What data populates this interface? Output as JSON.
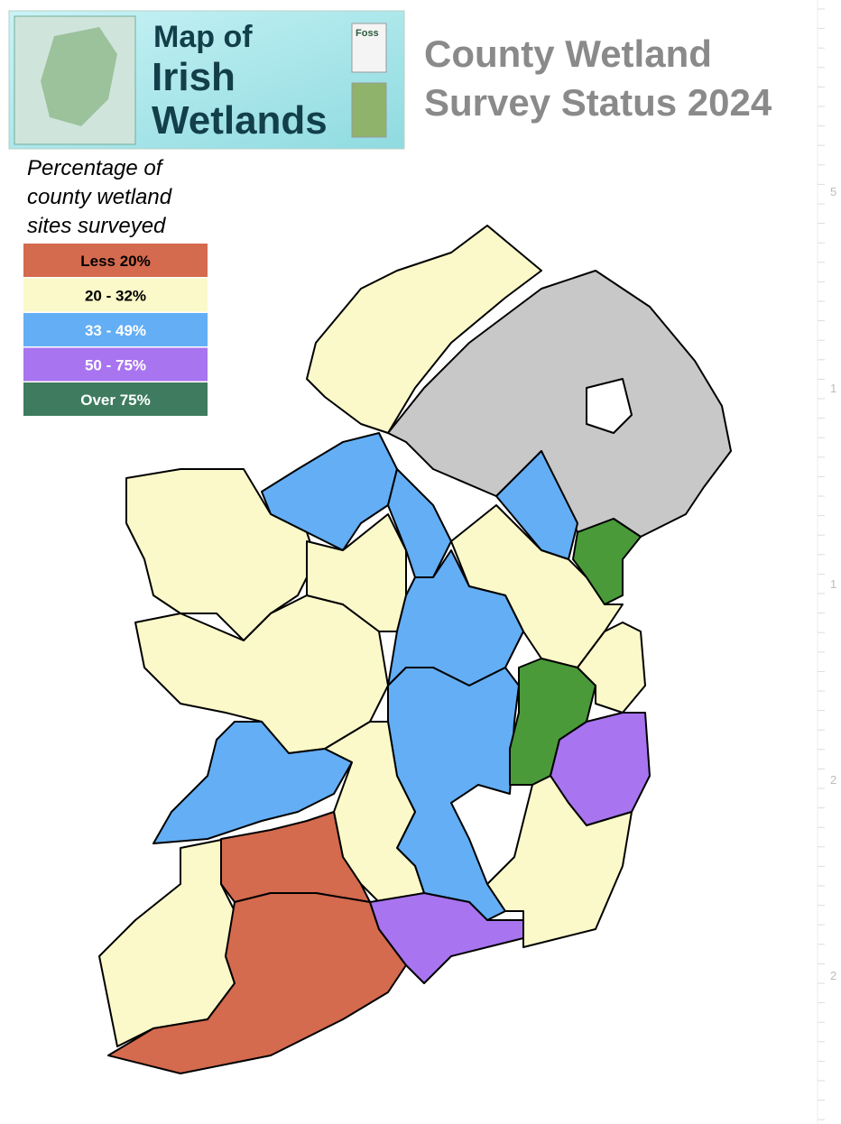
{
  "header": {
    "logo_lines": [
      "Map of",
      "Irish",
      "Wetlands"
    ],
    "partner_logo": "Foss"
  },
  "title_lines": [
    "County Wetland",
    "Survey Status 2024"
  ],
  "legend": {
    "title_lines": [
      "Percentage of",
      "county wetland",
      "sites surveyed"
    ],
    "items": [
      {
        "label": "Less 20%",
        "color": "#d46a4e",
        "text_color": "#000"
      },
      {
        "label": "20 - 32%",
        "color": "#fbf9c9",
        "text_color": "#000"
      },
      {
        "label": "33 - 49%",
        "color": "#63aef5",
        "text_color": "#fff"
      },
      {
        "label": "50 - 75%",
        "color": "#a874f0",
        "text_color": "#fff"
      },
      {
        "label": "Over 75%",
        "color": "#3f7c5f",
        "text_color": "#fff"
      }
    ]
  },
  "ruler_labels": [
    "5",
    "1",
    "1",
    "2",
    "2"
  ]
}
